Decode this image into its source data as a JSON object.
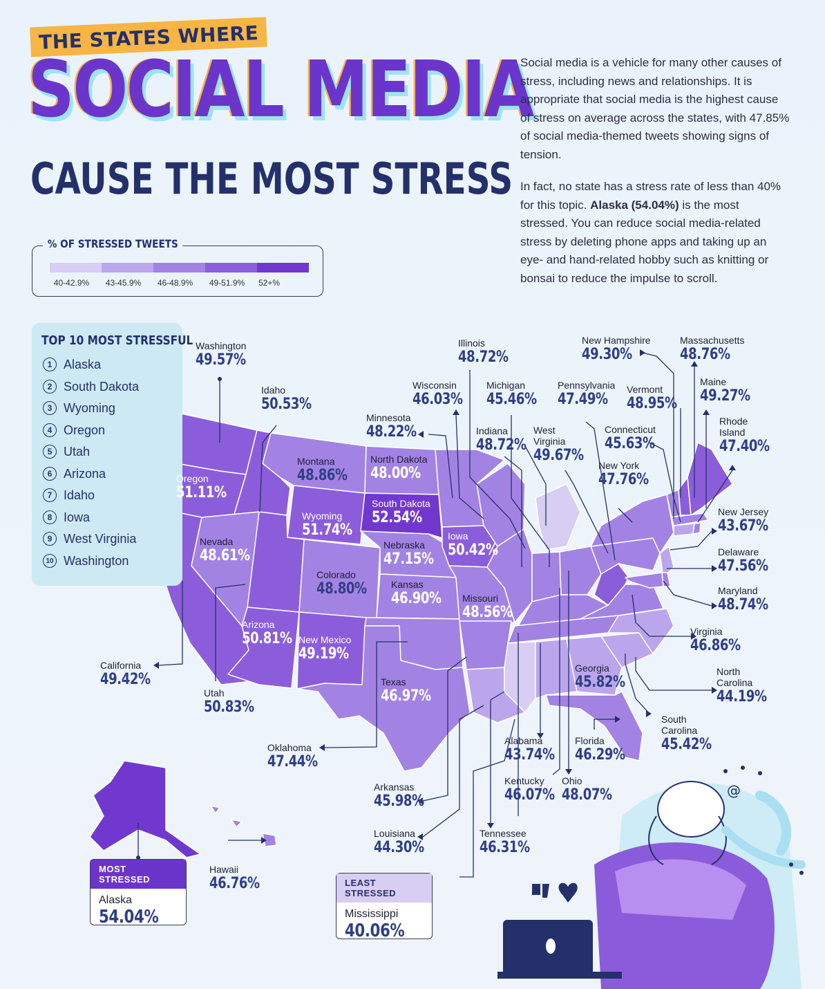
{
  "header": {
    "tag": "THE STATES WHERE",
    "headline": "SOCIAL MEDIA",
    "subhead": "CAUSE THE MOST STRESS"
  },
  "intro": {
    "p1": "Social media is a vehicle for many other causes of stress, including news and relationships. It is appropriate that social media is the highest cause of stress on average across the states, with 47.85% of social media-themed tweets showing signs of tension.",
    "p2_a": "In fact, no state has a stress rate of less than 40% for this topic. ",
    "p2_bold": "Alaska (54.04%)",
    "p2_b": " is the most stressed. You can reduce social media-related stress by deleting phone apps and taking up an eye- and hand-related hobby such as knitting or bonsai to reduce the impulse to scroll."
  },
  "legend": {
    "title": "% OF STRESSED TWEETS",
    "bins": [
      {
        "label": "40-42.9%",
        "color": "#d8cdf3"
      },
      {
        "label": "43-45.9%",
        "color": "#bba6ec"
      },
      {
        "label": "46-48.9%",
        "color": "#a283e3"
      },
      {
        "label": "49-51.9%",
        "color": "#8c5ddb"
      },
      {
        "label": "52+%",
        "color": "#7138cf"
      }
    ]
  },
  "top10": {
    "title": "TOP 10 MOST STRESSFUL",
    "items": [
      {
        "rank": "1",
        "name": "Alaska"
      },
      {
        "rank": "2",
        "name": "South Dakota"
      },
      {
        "rank": "3",
        "name": "Wyoming"
      },
      {
        "rank": "4",
        "name": "Oregon"
      },
      {
        "rank": "5",
        "name": "Utah"
      },
      {
        "rank": "6",
        "name": "Arizona"
      },
      {
        "rank": "7",
        "name": "Idaho"
      },
      {
        "rank": "8",
        "name": "Iowa"
      },
      {
        "rank": "9",
        "name": "West Virginia"
      },
      {
        "rank": "10",
        "name": "Washington"
      }
    ]
  },
  "states": {
    "washington": {
      "name": "Washington",
      "value": "49.57%"
    },
    "idaho": {
      "name": "Idaho",
      "value": "50.53%"
    },
    "oregon": {
      "name": "Oregon",
      "value": "51.11%"
    },
    "montana": {
      "name": "Montana",
      "value": "48.86%"
    },
    "wyoming": {
      "name": "Wyoming",
      "value": "51.74%"
    },
    "nevada": {
      "name": "Nevada",
      "value": "48.61%"
    },
    "california": {
      "name": "California",
      "value": "49.42%"
    },
    "utah": {
      "name": "Utah",
      "value": "50.83%"
    },
    "colorado": {
      "name": "Colorado",
      "value": "48.80%"
    },
    "arizona": {
      "name": "Arizona",
      "value": "50.81%"
    },
    "new_mexico": {
      "name": "New Mexico",
      "value": "49.19%"
    },
    "north_dakota": {
      "name": "North Dakota",
      "value": "48.00%"
    },
    "south_dakota": {
      "name": "South Dakota",
      "value": "52.54%"
    },
    "nebraska": {
      "name": "Nebraska",
      "value": "47.15%"
    },
    "kansas": {
      "name": "Kansas",
      "value": "46.90%"
    },
    "oklahoma": {
      "name": "Oklahoma",
      "value": "47.44%"
    },
    "texas": {
      "name": "Texas",
      "value": "46.97%"
    },
    "minnesota": {
      "name": "Minnesota",
      "value": "48.22%"
    },
    "iowa": {
      "name": "Iowa",
      "value": "50.42%"
    },
    "missouri": {
      "name": "Missouri",
      "value": "48.56%"
    },
    "arkansas": {
      "name": "Arkansas",
      "value": "45.98%"
    },
    "louisiana": {
      "name": "Louisiana",
      "value": "44.30%"
    },
    "wisconsin": {
      "name": "Wisconsin",
      "value": "46.03%"
    },
    "illinois": {
      "name": "Illinois",
      "value": "48.72%"
    },
    "michigan": {
      "name": "Michigan",
      "value": "45.46%"
    },
    "indiana": {
      "name": "Indiana",
      "value": "48.72%"
    },
    "ohio": {
      "name": "Ohio",
      "value": "48.07%"
    },
    "kentucky": {
      "name": "Kentucky",
      "value": "46.07%"
    },
    "tennessee": {
      "name": "Tennessee",
      "value": "46.31%"
    },
    "alabama": {
      "name": "Alabama",
      "value": "43.74%"
    },
    "georgia": {
      "name": "Georgia",
      "value": "45.82%"
    },
    "florida": {
      "name": "Florida",
      "value": "46.29%"
    },
    "south_carolina": {
      "name": "South Carolina",
      "value": "45.42%"
    },
    "north_carolina": {
      "name": "North Carolina",
      "value": "44.19%"
    },
    "virginia": {
      "name": "Virginia",
      "value": "46.86%"
    },
    "west_virginia": {
      "name": "West Virginia",
      "value": "49.67%"
    },
    "pennsylvania": {
      "name": "Pennsylvania",
      "value": "47.49%"
    },
    "new_york": {
      "name": "New York",
      "value": "47.76%"
    },
    "vermont": {
      "name": "Vermont",
      "value": "48.95%"
    },
    "new_hampshire": {
      "name": "New Hampshire",
      "value": "49.30%"
    },
    "massachusetts": {
      "name": "Massachusetts",
      "value": "48.76%"
    },
    "maine": {
      "name": "Maine",
      "value": "49.27%"
    },
    "rhode_island": {
      "name": "Rhode Island",
      "value": "47.40%"
    },
    "connecticut": {
      "name": "Connecticut",
      "value": "45.63%"
    },
    "new_jersey": {
      "name": "New Jersey",
      "value": "43.67%"
    },
    "delaware": {
      "name": "Delaware",
      "value": "47.56%"
    },
    "maryland": {
      "name": "Maryland",
      "value": "48.74%"
    },
    "hawaii": {
      "name": "Hawaii",
      "value": "46.76%"
    }
  },
  "most_stressed": {
    "label": "MOST STRESSED",
    "name": "Alaska",
    "value": "54.04%"
  },
  "least_stressed": {
    "label": "LEAST STRESSED",
    "name": "Mississippi",
    "value": "40.06%"
  }
}
